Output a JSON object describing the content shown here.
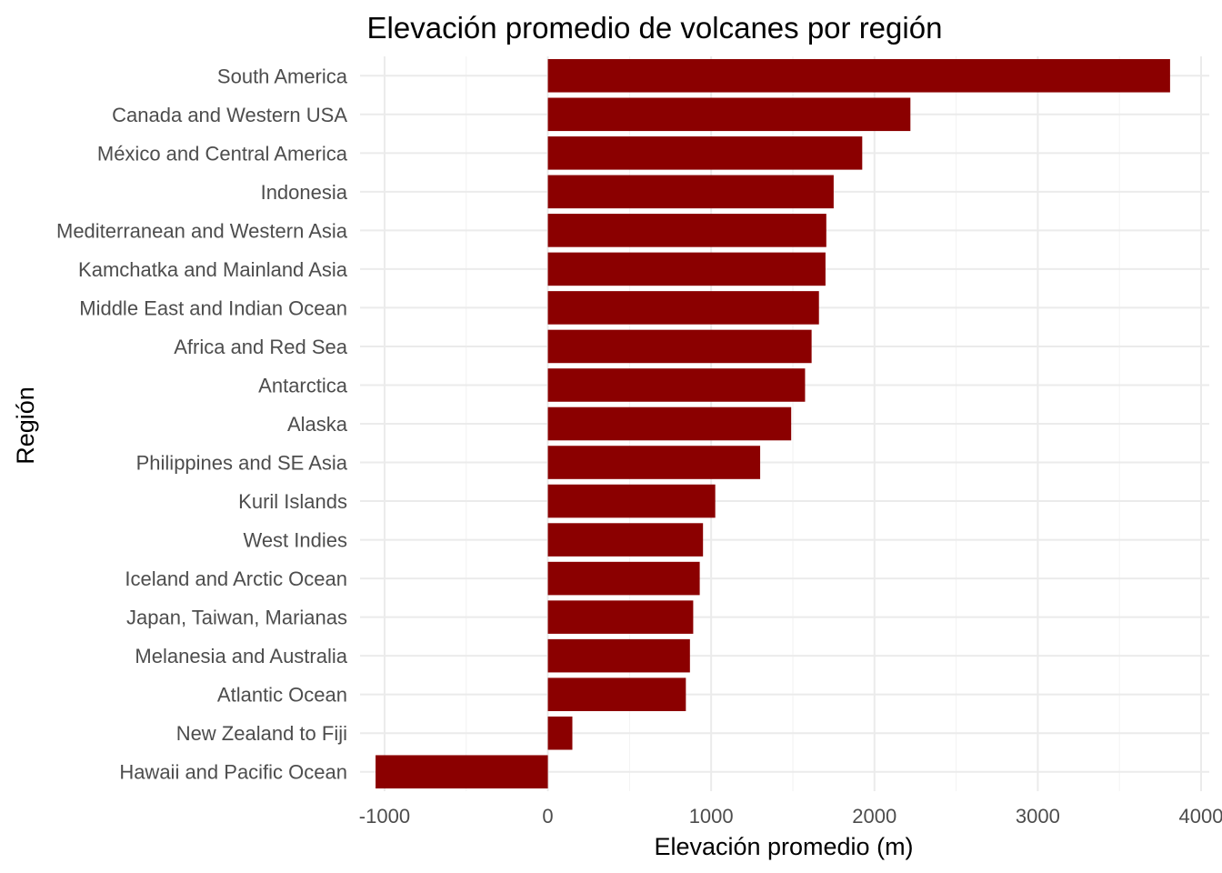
{
  "chart_data": {
    "type": "bar",
    "orientation": "horizontal",
    "title": "Elevación promedio de volcanes por región",
    "xlabel": "Elevación promedio (m)",
    "ylabel": "Región",
    "xlim": [
      -1150,
      4050
    ],
    "xticks": [
      -1000,
      0,
      1000,
      2000,
      3000,
      4000
    ],
    "xtick_labels": [
      "-1000",
      "0",
      "1000",
      "2000",
      "3000",
      "4000"
    ],
    "grid": true,
    "legend": "none",
    "bar_color": "#8b0000",
    "categories": [
      "South America",
      "Canada and Western USA",
      "México and Central America",
      "Indonesia",
      "Mediterranean and Western Asia",
      "Kamchatka and Mainland Asia",
      "Middle East and Indian Ocean",
      "Africa and Red Sea",
      "Antarctica",
      "Alaska",
      "Philippines and SE Asia",
      "Kuril Islands",
      "West Indies",
      "Iceland and Arctic Ocean",
      "Japan, Taiwan, Marianas",
      "Melanesia and Australia",
      "Atlantic Ocean",
      "New Zealand to Fiji",
      "Hawaii and Pacific Ocean"
    ],
    "values": [
      3810,
      2220,
      1925,
      1750,
      1705,
      1700,
      1660,
      1615,
      1575,
      1490,
      1300,
      1025,
      950,
      930,
      890,
      870,
      845,
      150,
      -1055
    ]
  }
}
